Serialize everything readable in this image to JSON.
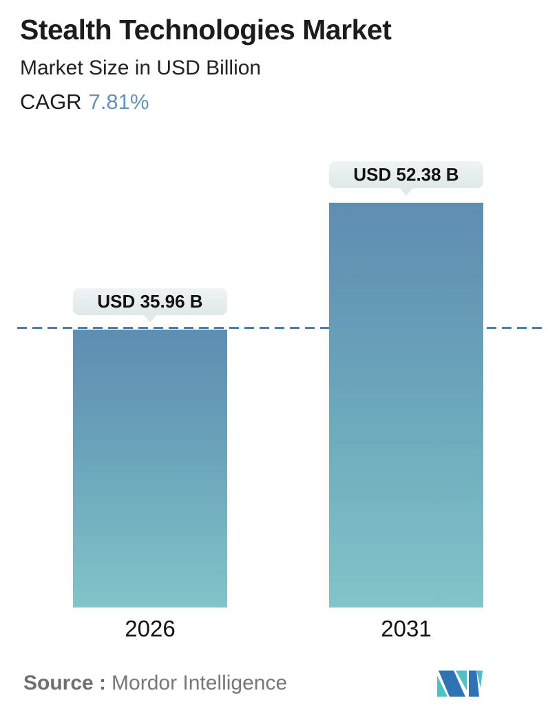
{
  "header": {
    "title": "Stealth Technologies Market",
    "subtitle": "Market Size in USD Billion",
    "cagr_label": "CAGR",
    "cagr_value": "7.81%"
  },
  "chart_data": {
    "type": "bar",
    "title": "Stealth Technologies Market",
    "subtitle": "Market Size in USD Billion",
    "unit": "USD Billion",
    "categories": [
      "2026",
      "2031"
    ],
    "values": [
      35.96,
      52.38
    ],
    "data_labels": [
      "USD 35.96 B",
      "USD 52.38 B"
    ],
    "cagr_percent": 7.81,
    "ylim": [
      0,
      55
    ],
    "grid": false,
    "legend": "none",
    "reference_line": {
      "style": "dashed",
      "at_value": 35.96,
      "color": "#4e7da7"
    },
    "colors": {
      "bar_gradient_top": "#5e8db2",
      "bar_gradient_bottom": "#82c4c9",
      "label_bubble_bg": "#e7edef",
      "cagr_accent": "#6191bd",
      "dashed_line": "#4e7da7"
    }
  },
  "bars": [
    {
      "year": "2026",
      "label": "USD 35.96 B"
    },
    {
      "year": "2031",
      "label": "USD 52.38 B"
    }
  ],
  "footer": {
    "source_label": "Source :",
    "source_name": "Mordor Intelligence",
    "logo": {
      "name": "mordor-intelligence-logo",
      "teal": "#4cc2c6",
      "blue": "#2e74b5"
    }
  }
}
